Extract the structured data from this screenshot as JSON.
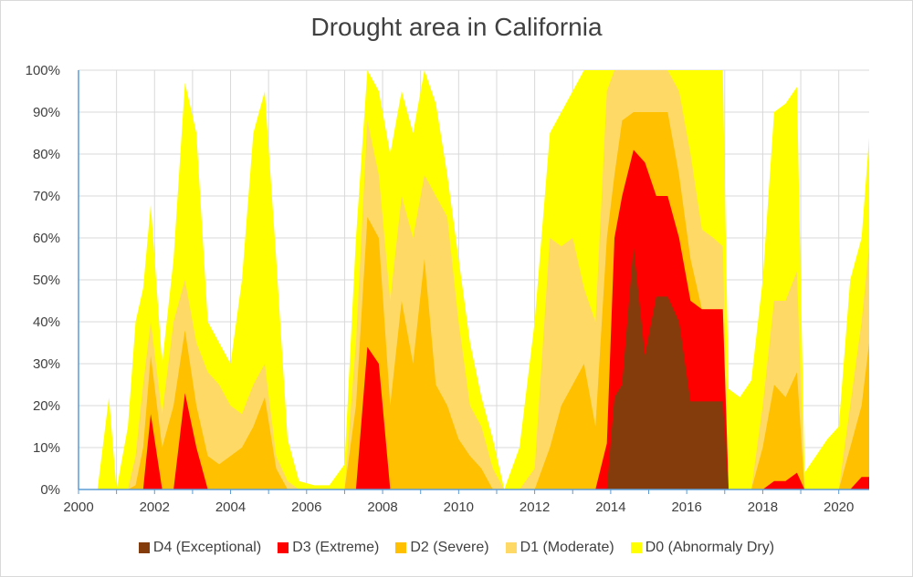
{
  "chart_data": {
    "type": "area",
    "title": "Drought area in California",
    "xlabel": "",
    "ylabel": "",
    "xlim": [
      2000,
      2020.8
    ],
    "ylim": [
      0,
      100
    ],
    "y_ticks": [
      "0%",
      "10%",
      "20%",
      "30%",
      "40%",
      "50%",
      "60%",
      "70%",
      "80%",
      "90%",
      "100%"
    ],
    "x_ticks": [
      "2000",
      "2002",
      "2004",
      "2006",
      "2008",
      "2010",
      "2012",
      "2014",
      "2016",
      "2018",
      "2020"
    ],
    "grid": true,
    "legend_position": "bottom",
    "stacking": "cumulative (each category includes all more severe categories)",
    "x": [
      2000.0,
      2000.5,
      2000.8,
      2001.0,
      2001.3,
      2001.5,
      2001.7,
      2001.9,
      2002.2,
      2002.5,
      2002.8,
      2003.1,
      2003.4,
      2003.7,
      2004.0,
      2004.3,
      2004.6,
      2004.9,
      2005.2,
      2005.5,
      2005.8,
      2006.2,
      2006.6,
      2007.0,
      2007.3,
      2007.6,
      2007.9,
      2008.2,
      2008.5,
      2008.8,
      2009.1,
      2009.4,
      2009.7,
      2010.0,
      2010.3,
      2010.6,
      2010.9,
      2011.2,
      2011.6,
      2012.0,
      2012.4,
      2012.7,
      2013.0,
      2013.3,
      2013.6,
      2013.9,
      2014.1,
      2014.3,
      2014.6,
      2014.9,
      2015.2,
      2015.5,
      2015.8,
      2016.1,
      2016.4,
      2016.7,
      2016.95,
      2017.1,
      2017.4,
      2017.7,
      2018.0,
      2018.3,
      2018.6,
      2018.9,
      2019.1,
      2019.4,
      2019.7,
      2020.0,
      2020.3,
      2020.6,
      2020.8
    ],
    "series": [
      {
        "name": "D4 (Exceptional)",
        "color": "#843c0c",
        "values": [
          0,
          0,
          0,
          0,
          0,
          0,
          0,
          0,
          0,
          0,
          0,
          0,
          0,
          0,
          0,
          0,
          0,
          0,
          0,
          0,
          0,
          0,
          0,
          0,
          0,
          0,
          0,
          0,
          0,
          0,
          0,
          0,
          0,
          0,
          0,
          0,
          0,
          0,
          0,
          0,
          0,
          0,
          0,
          0,
          0,
          0,
          22,
          25,
          58,
          32,
          46,
          46,
          40,
          21,
          21,
          21,
          21,
          0,
          0,
          0,
          0,
          0,
          0,
          0,
          0,
          0,
          0,
          0,
          0,
          0,
          0
        ]
      },
      {
        "name": "D3 (Extreme)",
        "color": "#ff0000",
        "values": [
          0,
          0,
          0,
          0,
          0,
          0,
          0,
          18,
          0,
          0,
          23,
          10,
          0,
          0,
          0,
          0,
          0,
          0,
          0,
          0,
          0,
          0,
          0,
          0,
          0,
          34,
          30,
          0,
          0,
          0,
          0,
          0,
          0,
          0,
          0,
          0,
          0,
          0,
          0,
          0,
          0,
          0,
          0,
          0,
          0,
          11,
          60,
          70,
          81,
          78,
          70,
          70,
          60,
          45,
          43,
          43,
          43,
          0,
          0,
          0,
          0,
          2,
          2,
          4,
          0,
          0,
          0,
          0,
          0,
          3,
          3
        ]
      },
      {
        "name": "D2 (Severe)",
        "color": "#ffc000",
        "values": [
          0,
          0,
          0,
          0,
          0,
          1,
          10,
          32,
          10,
          20,
          38,
          20,
          8,
          6,
          8,
          10,
          15,
          22,
          5,
          0,
          0,
          0,
          0,
          0,
          20,
          65,
          60,
          20,
          45,
          30,
          55,
          25,
          20,
          12,
          8,
          5,
          0,
          0,
          0,
          0,
          10,
          20,
          25,
          30,
          15,
          60,
          75,
          88,
          90,
          90,
          90,
          90,
          75,
          55,
          43,
          43,
          43,
          0,
          0,
          0,
          10,
          25,
          22,
          28,
          0,
          0,
          0,
          0,
          10,
          20,
          35
        ]
      },
      {
        "name": "D1 (Moderate)",
        "color": "#ffd966",
        "values": [
          0,
          0,
          0,
          0,
          0,
          8,
          25,
          40,
          18,
          40,
          50,
          35,
          28,
          25,
          20,
          18,
          25,
          30,
          8,
          2,
          0,
          0,
          0,
          0,
          35,
          88,
          75,
          45,
          70,
          60,
          75,
          70,
          65,
          40,
          20,
          15,
          5,
          0,
          0,
          5,
          60,
          58,
          60,
          48,
          40,
          95,
          100,
          100,
          100,
          100,
          100,
          100,
          95,
          80,
          62,
          60,
          58,
          0,
          0,
          0,
          20,
          45,
          45,
          52,
          0,
          0,
          0,
          0,
          20,
          40,
          58
        ]
      },
      {
        "name": "D0 (Abnormaly Dry)",
        "color": "#ffff00",
        "values": [
          0,
          0,
          22,
          0,
          15,
          40,
          48,
          68,
          30,
          55,
          97,
          85,
          40,
          35,
          30,
          50,
          85,
          95,
          55,
          12,
          2,
          1,
          1,
          6,
          60,
          100,
          95,
          80,
          95,
          85,
          100,
          92,
          75,
          55,
          35,
          22,
          12,
          0,
          10,
          40,
          85,
          90,
          95,
          100,
          100,
          100,
          100,
          100,
          100,
          100,
          100,
          100,
          100,
          100,
          100,
          100,
          100,
          24,
          22,
          26,
          50,
          90,
          92,
          96,
          4,
          8,
          12,
          15,
          50,
          60,
          84
        ]
      }
    ]
  },
  "legend_items": [
    {
      "label": "D4 (Exceptional)",
      "color": "#843c0c"
    },
    {
      "label": "D3 (Extreme)",
      "color": "#ff0000"
    },
    {
      "label": "D2 (Severe)",
      "color": "#ffc000"
    },
    {
      "label": "D1 (Moderate)",
      "color": "#ffd966"
    },
    {
      "label": "D0 (Abnormaly Dry)",
      "color": "#ffff00"
    }
  ]
}
